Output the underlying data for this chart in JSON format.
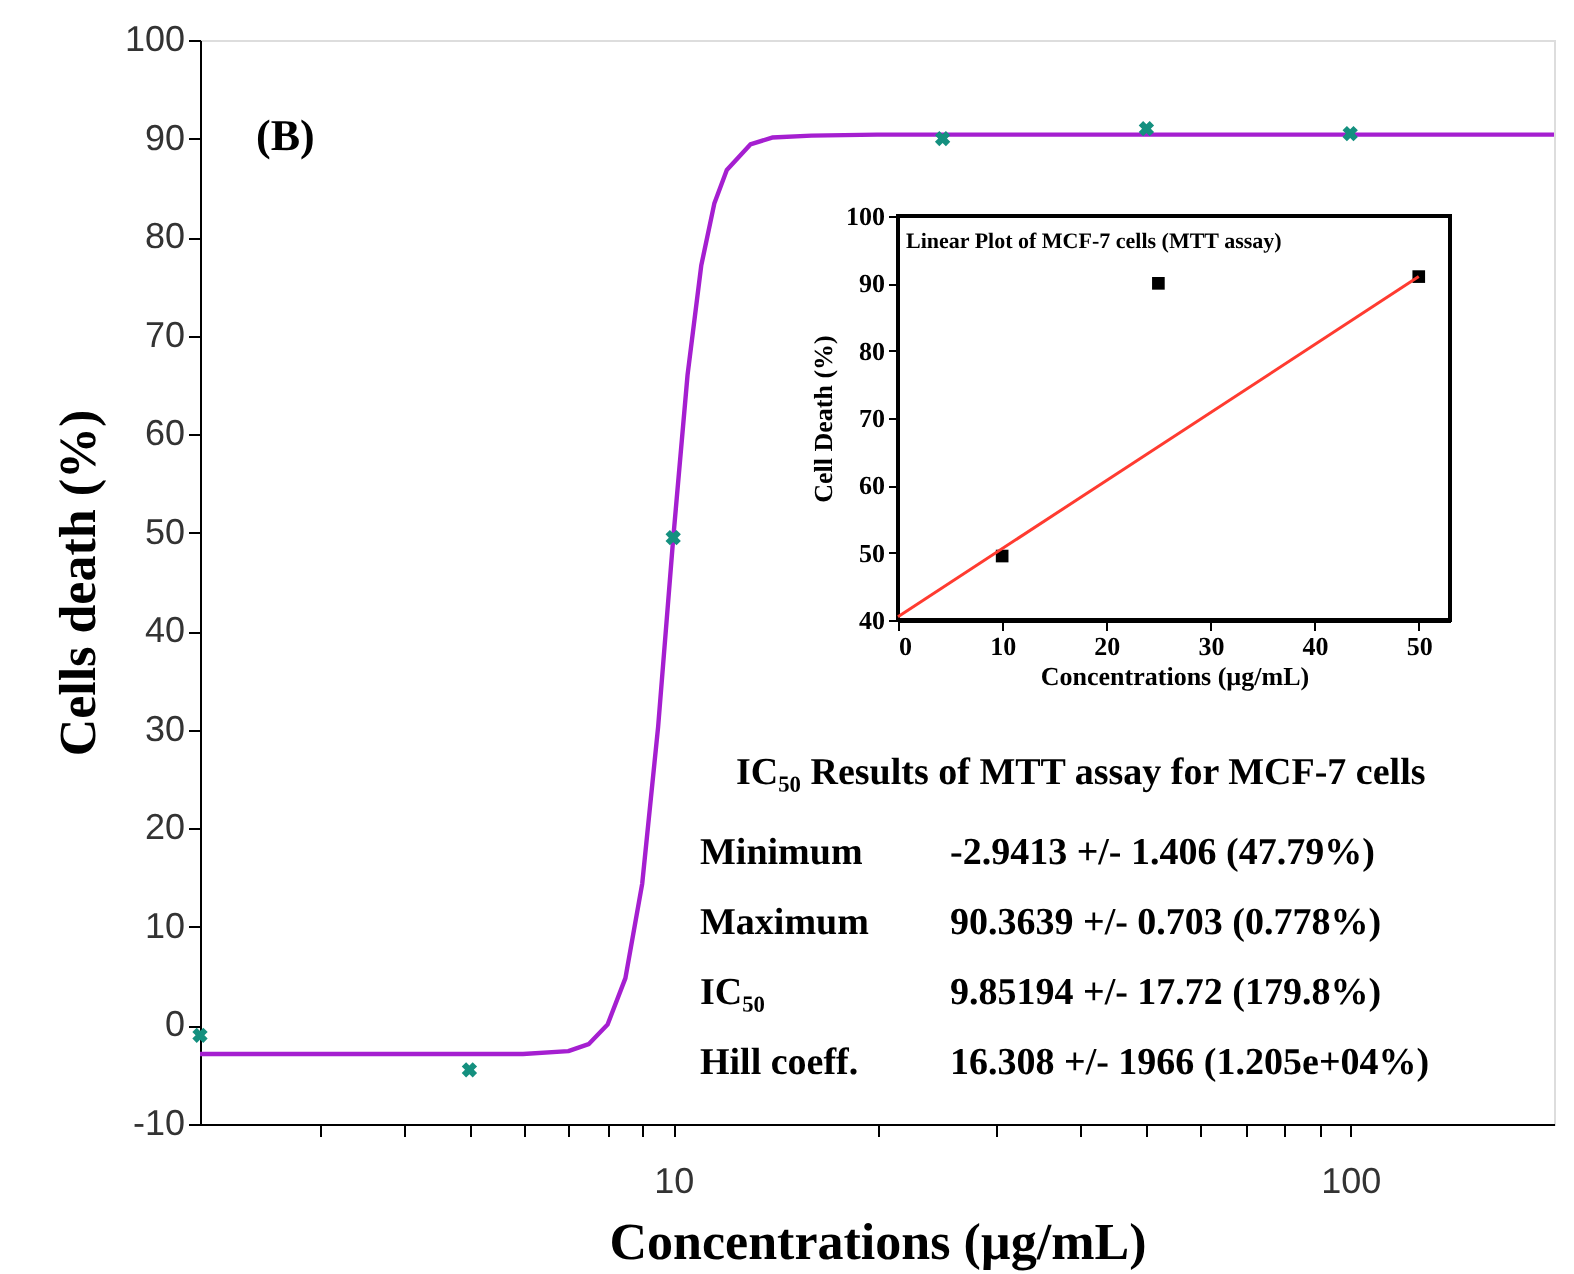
{
  "chart_data": [
    {
      "type": "scatter",
      "xlabel": "Concentrations (µg/mL)",
      "ylabel": "Cells death (%)",
      "log": "x",
      "grid": false,
      "xlim": [
        2,
        200
      ],
      "xticks": [
        {
          "value": 3,
          "label": null
        },
        {
          "value": 4,
          "label": null
        },
        {
          "value": 5,
          "label": null
        },
        {
          "value": 6,
          "label": null
        },
        {
          "value": 7,
          "label": null
        },
        {
          "value": 8,
          "label": null
        },
        {
          "value": 9,
          "label": null
        },
        10,
        {
          "value": 20,
          "label": null
        },
        {
          "value": 30,
          "label": null
        },
        {
          "value": 40,
          "label": null
        },
        {
          "value": 50,
          "label": null
        },
        {
          "value": 60,
          "label": null
        },
        {
          "value": 70,
          "label": null
        },
        {
          "value": 80,
          "label": null
        },
        {
          "value": 90,
          "label": null
        },
        100
      ],
      "ylim": [
        -10,
        100
      ],
      "yticks": [
        -10,
        0,
        10,
        20,
        30,
        40,
        50,
        60,
        70,
        80,
        90,
        100
      ],
      "series": [
        {
          "type": "line",
          "color": "#a51fd0",
          "marker": "none",
          "line_style": "solid",
          "x": [
            2,
            4,
            6,
            7,
            7.5,
            8,
            8.5,
            9,
            9.5,
            10,
            10.5,
            11,
            11.5,
            12,
            13,
            14,
            16,
            20,
            50,
            100,
            200
          ],
          "values": [
            -2.9,
            -2.9,
            -2.9,
            -2.6,
            -1.9,
            0.1,
            4.8,
            14.4,
            30.3,
            49.4,
            66.0,
            77.1,
            83.4,
            86.8,
            89.4,
            90.1,
            90.3,
            90.4,
            90.4,
            90.4,
            90.4
          ]
        },
        {
          "type": "scatter",
          "color": "#14907f",
          "marker": "cross",
          "x": [
            2,
            5,
            10,
            25,
            50,
            100
          ],
          "values": [
            -1,
            -4.5,
            49.5,
            90,
            91,
            90.5
          ]
        }
      ],
      "annotations": [
        "(B)",
        "IC₅₀ Results of MTT assay for MCF-7 cells",
        "Minimum",
        "-2.9413 +/- 1.406 (47.79%)",
        "Maximum",
        "90.3639 +/- 0.703 (0.778%)",
        "IC₅₀",
        "9.85194 +/- 17.72 (179.8%)",
        "Hill coeff.",
        "16.308 +/- 1966 (1.205e+04%)"
      ]
    },
    {
      "type": "scatter",
      "title": "Linear Plot of MCF-7 cells (MTT assay)",
      "xlabel": "Concentrations (µg/mL)",
      "ylabel": "Cell Death (%)",
      "grid": false,
      "xlim": [
        0,
        53
      ],
      "xticks": [
        0,
        10,
        20,
        30,
        40,
        50
      ],
      "ylim": [
        40,
        100
      ],
      "yticks": [
        40,
        50,
        60,
        70,
        80,
        90,
        100
      ],
      "series": [
        {
          "type": "scatter",
          "color": "#000000",
          "marker": "square",
          "x": [
            10,
            25,
            50
          ],
          "values": [
            49.5,
            90,
            91
          ]
        },
        {
          "type": "line",
          "color": "#ff3b30",
          "marker": "none",
          "line_style": "solid",
          "x": [
            0,
            50
          ],
          "values": [
            40.5,
            91
          ]
        }
      ]
    }
  ]
}
